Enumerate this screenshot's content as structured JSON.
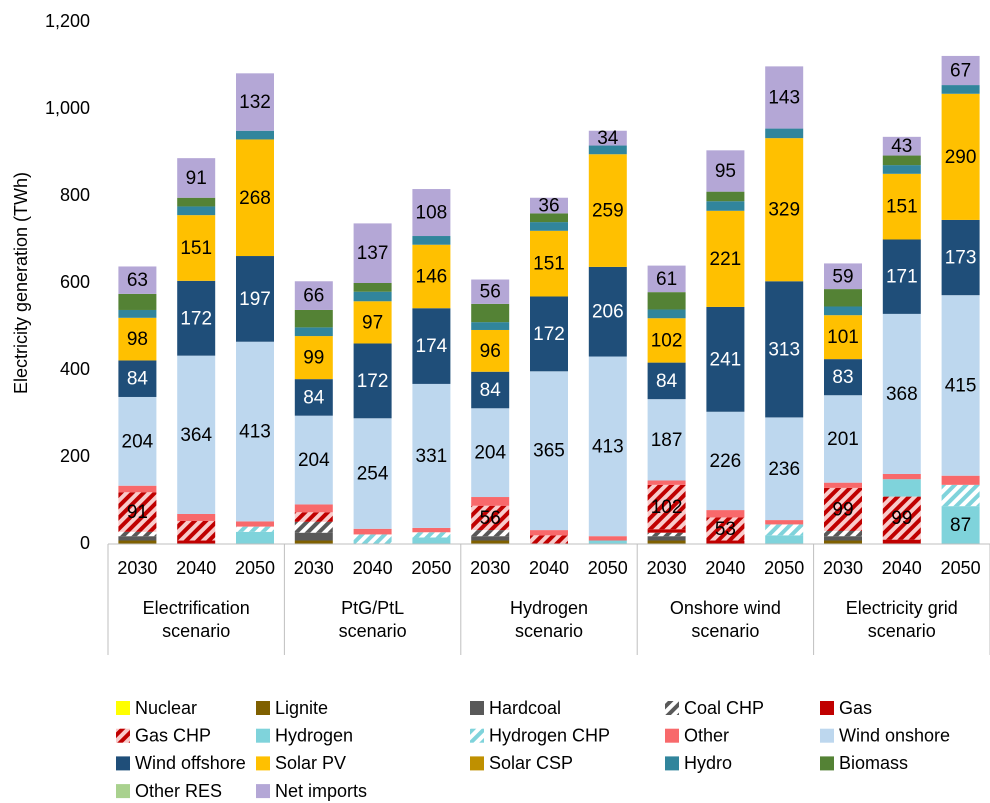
{
  "chart_data": {
    "type": "stacked-bar",
    "y_label": "Electricity generation (TWh)",
    "groups": [
      {
        "name": "Electrification\nscenario",
        "categories": [
          "2030",
          "2040",
          "2050"
        ]
      },
      {
        "name": "PtG/PtL\nscenario",
        "categories": [
          "2030",
          "2040",
          "2050"
        ]
      },
      {
        "name": "Hydrogen\nscenario",
        "categories": [
          "2030",
          "2040",
          "2050"
        ]
      },
      {
        "name": "Onshore wind\nscenario",
        "categories": [
          "2030",
          "2040",
          "2050"
        ]
      },
      {
        "name": "Electricity grid\nscenario",
        "categories": [
          "2030",
          "2040",
          "2050"
        ]
      }
    ],
    "ylim": [
      0,
      1200
    ],
    "yticks": [
      0,
      200,
      400,
      600,
      800,
      {
        "value": 1000,
        "label": "1,000"
      },
      {
        "value": 1200,
        "label": "1,200"
      }
    ],
    "grid": false,
    "data_label_min": 50,
    "series": [
      {
        "name": "Nuclear",
        "color": "#ffff00",
        "values": [
          0,
          0,
          0,
          0,
          0,
          0,
          0,
          0,
          0,
          0,
          0,
          0,
          0,
          0,
          0
        ]
      },
      {
        "name": "Lignite",
        "color": "#7f6000",
        "values": [
          8,
          0,
          0,
          8,
          0,
          0,
          8,
          0,
          0,
          8,
          0,
          0,
          8,
          0,
          0
        ]
      },
      {
        "name": "Hardcoal",
        "color": "#595959",
        "values": [
          10,
          0,
          0,
          18,
          0,
          0,
          10,
          0,
          0,
          10,
          0,
          0,
          10,
          0,
          0
        ]
      },
      {
        "name": "Coal CHP",
        "color": "#595959",
        "pattern": "hatch",
        "pattern_background": "#ffffff",
        "values": [
          10,
          0,
          0,
          25,
          0,
          0,
          14,
          0,
          0,
          8,
          0,
          0,
          12,
          0,
          0
        ]
      },
      {
        "name": "Gas",
        "color": "#c00000",
        "values": [
          0,
          8,
          0,
          0,
          0,
          0,
          0,
          0,
          0,
          8,
          8,
          0,
          0,
          10,
          0
        ]
      },
      {
        "name": "Gas CHP",
        "color": "#c00000",
        "pattern": "hatch",
        "pattern_background": "#f8cbcb",
        "values": [
          91,
          45,
          0,
          22,
          0,
          0,
          56,
          20,
          0,
          102,
          53,
          0,
          99,
          99,
          0
        ]
      },
      {
        "name": "Hydrogen",
        "color": "#7fd3db",
        "values": [
          0,
          0,
          28,
          0,
          0,
          15,
          0,
          0,
          8,
          0,
          0,
          20,
          0,
          40,
          87
        ]
      },
      {
        "name": "Hydrogen CHP",
        "color": "#7fd3db",
        "pattern": "hatch",
        "pattern_background": "#ffffff",
        "values": [
          0,
          0,
          12,
          0,
          22,
          12,
          0,
          0,
          0,
          0,
          0,
          25,
          0,
          0,
          49
        ]
      },
      {
        "name": "Other",
        "color": "#f8696b",
        "values": [
          15,
          16,
          12,
          18,
          13,
          10,
          20,
          12,
          10,
          10,
          17,
          10,
          12,
          12,
          21
        ]
      },
      {
        "name": "Wind onshore",
        "color": "#bdd7ee",
        "values": [
          204,
          364,
          413,
          204,
          254,
          331,
          204,
          365,
          413,
          187,
          226,
          236,
          201,
          368,
          415
        ]
      },
      {
        "name": "Wind offshore",
        "color": "#1f4e79",
        "label_color": "#ffffff",
        "values": [
          84,
          172,
          197,
          84,
          172,
          174,
          84,
          172,
          206,
          84,
          241,
          313,
          83,
          171,
          173
        ]
      },
      {
        "name": "Solar PV",
        "color": "#ffc000",
        "values": [
          98,
          151,
          268,
          99,
          97,
          146,
          96,
          151,
          259,
          102,
          221,
          329,
          101,
          151,
          290
        ]
      },
      {
        "name": "Solar CSP",
        "color": "#bf9000",
        "values": [
          0,
          0,
          0,
          0,
          0,
          0,
          0,
          0,
          0,
          0,
          0,
          0,
          0,
          0,
          0
        ]
      },
      {
        "name": "Hydro",
        "color": "#31859c",
        "values": [
          18,
          20,
          20,
          20,
          22,
          20,
          18,
          20,
          20,
          20,
          22,
          22,
          20,
          20,
          20
        ]
      },
      {
        "name": "Biomass",
        "color": "#548235",
        "values": [
          37,
          20,
          0,
          40,
          20,
          0,
          42,
          20,
          0,
          40,
          22,
          0,
          40,
          22,
          0
        ]
      },
      {
        "name": "Other RES",
        "color": "#a9d18e",
        "values": [
          0,
          0,
          0,
          0,
          0,
          0,
          0,
          0,
          0,
          0,
          0,
          0,
          0,
          0,
          0
        ]
      },
      {
        "name": "Net imports",
        "color": "#b4a7d6",
        "labels_all": true,
        "values": [
          63,
          91,
          132,
          66,
          137,
          108,
          56,
          36,
          34,
          61,
          95,
          143,
          59,
          43,
          67
        ]
      }
    ]
  }
}
